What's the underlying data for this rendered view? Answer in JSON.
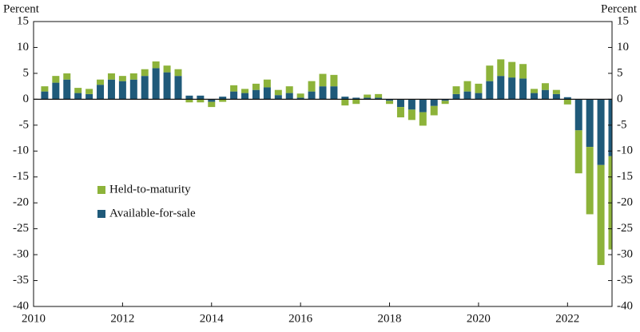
{
  "chart_data": {
    "type": "bar",
    "stacked": true,
    "y_label_left": "Percent",
    "y_label_right": "Percent",
    "x": [
      2010.25,
      2010.5,
      2010.75,
      2011,
      2011.25,
      2011.5,
      2011.75,
      2012,
      2012.25,
      2012.5,
      2012.75,
      2013,
      2013.25,
      2013.5,
      2013.75,
      2014,
      2014.25,
      2014.5,
      2014.75,
      2015,
      2015.25,
      2015.5,
      2015.75,
      2016,
      2016.25,
      2016.5,
      2016.75,
      2017,
      2017.25,
      2017.5,
      2017.75,
      2018,
      2018.25,
      2018.5,
      2018.75,
      2019,
      2019.25,
      2019.5,
      2019.75,
      2020,
      2020.25,
      2020.5,
      2020.75,
      2021,
      2021.25,
      2021.5,
      2021.75,
      2022,
      2022.25,
      2022.5,
      2022.75,
      2023
    ],
    "series": [
      {
        "name": "Held-to-maturity",
        "color": "#8db33a",
        "values": [
          1.0,
          1.3,
          1.2,
          1.0,
          1.0,
          1.0,
          1.2,
          1.0,
          1.2,
          1.3,
          1.3,
          1.3,
          1.3,
          -0.6,
          -0.6,
          -1.0,
          -0.5,
          1.2,
          0.8,
          1.2,
          1.5,
          1.0,
          1.3,
          0.8,
          2.0,
          2.4,
          2.2,
          -1.2,
          -0.9,
          0.6,
          0.7,
          -0.6,
          -2.0,
          -2.0,
          -2.6,
          -1.8,
          -0.6,
          1.5,
          2.0,
          1.8,
          3.0,
          3.2,
          3.0,
          2.8,
          0.8,
          1.3,
          0.8,
          -1.0,
          -8.3,
          -13.0,
          -19.3,
          -18.0
        ]
      },
      {
        "name": "Available-for-sale",
        "color": "#1f5a7a",
        "values": [
          1.5,
          3.2,
          3.8,
          1.2,
          1.0,
          2.8,
          3.8,
          3.5,
          3.8,
          4.5,
          6.0,
          5.2,
          4.5,
          0.7,
          0.7,
          -0.5,
          0.5,
          1.5,
          1.2,
          1.8,
          2.3,
          0.8,
          1.2,
          0.3,
          1.5,
          2.5,
          2.5,
          0.5,
          0.3,
          0.3,
          0.3,
          -0.3,
          -1.5,
          -2.0,
          -2.5,
          -1.3,
          -0.3,
          1.0,
          1.5,
          1.2,
          3.5,
          4.5,
          4.2,
          4.0,
          1.2,
          1.8,
          1.0,
          0.4,
          -6.0,
          -9.2,
          -12.7,
          -11.0
        ]
      }
    ],
    "xlim": [
      2010,
      2023
    ],
    "xticks": [
      2010,
      2012,
      2014,
      2016,
      2018,
      2020,
      2022
    ],
    "ylim": [
      -40,
      15
    ],
    "yticks": [
      -40,
      -35,
      -30,
      -25,
      -20,
      -15,
      -10,
      -5,
      0,
      5,
      10,
      15
    ],
    "grid": false
  }
}
